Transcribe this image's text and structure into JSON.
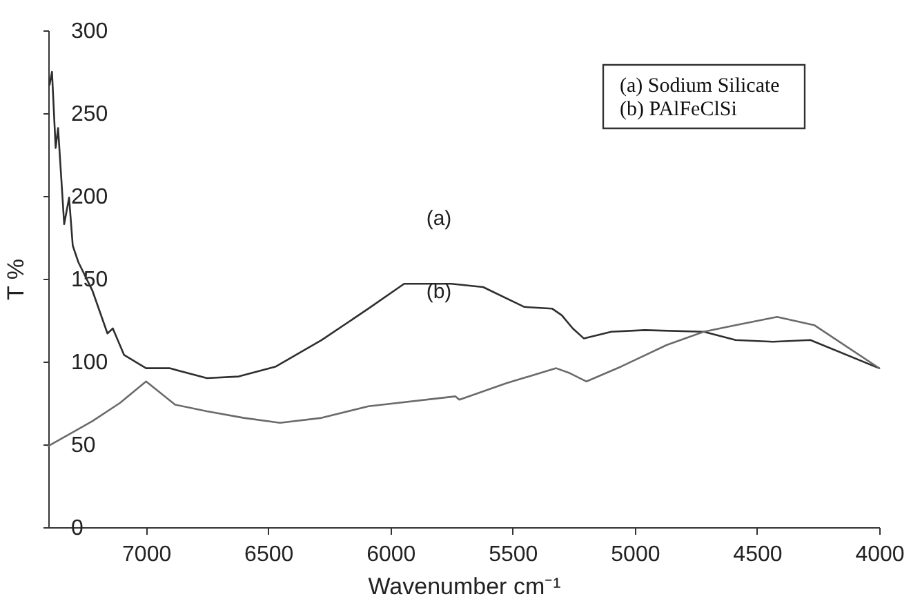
{
  "chart_data": {
    "type": "line",
    "xlabel": "Wavenumber cm⁻¹",
    "ylabel": "T %",
    "xlim": [
      7400,
      4000
    ],
    "xticks": [
      7000,
      6500,
      6000,
      5500,
      5000,
      4500,
      4000
    ],
    "ylim": [
      0,
      300
    ],
    "yticks": [
      0,
      50,
      100,
      150,
      200,
      250,
      300
    ],
    "grid": false,
    "marker": "none",
    "line_style": "solid",
    "series": [
      {
        "color": "#2e2e2e",
        "x": [
          7395,
          7385,
          7370,
          7360,
          7335,
          7315,
          7300,
          7277,
          7220,
          7158,
          7136,
          7090,
          7000,
          6904,
          6751,
          6621,
          6469,
          6282,
          6090,
          5944,
          5791,
          5751,
          5621,
          5452,
          5339,
          5299,
          5254,
          5209,
          5096,
          4960,
          4718,
          4588,
          4435,
          4282,
          4000
        ],
        "values": [
          267,
          275,
          229,
          241,
          183,
          199,
          170,
          160,
          143,
          117,
          120,
          104,
          96,
          96,
          90,
          91,
          97,
          113,
          132,
          147,
          147,
          147,
          145,
          133,
          132,
          128,
          120,
          114,
          118,
          119,
          118,
          113,
          112,
          113,
          96
        ]
      },
      {
        "color": "#6a6a6a",
        "x": [
          7400,
          7316,
          7220,
          7107,
          7000,
          6881,
          6751,
          6600,
          6452,
          6282,
          6090,
          5734,
          5718,
          5525,
          5322,
          5266,
          5198,
          5056,
          4870,
          4718,
          4588,
          4418,
          4266,
          4000
        ],
        "values": [
          49,
          56,
          64,
          75,
          88,
          74,
          70,
          66,
          63,
          66,
          73,
          79,
          77,
          87,
          96,
          93,
          88,
          97,
          110,
          118,
          122,
          127,
          122,
          96
        ]
      }
    ],
    "annotations": [
      "(a)",
      "(b)",
      "(a)  Sodium Silicate",
      "(b)   PAlFeClSi"
    ]
  }
}
